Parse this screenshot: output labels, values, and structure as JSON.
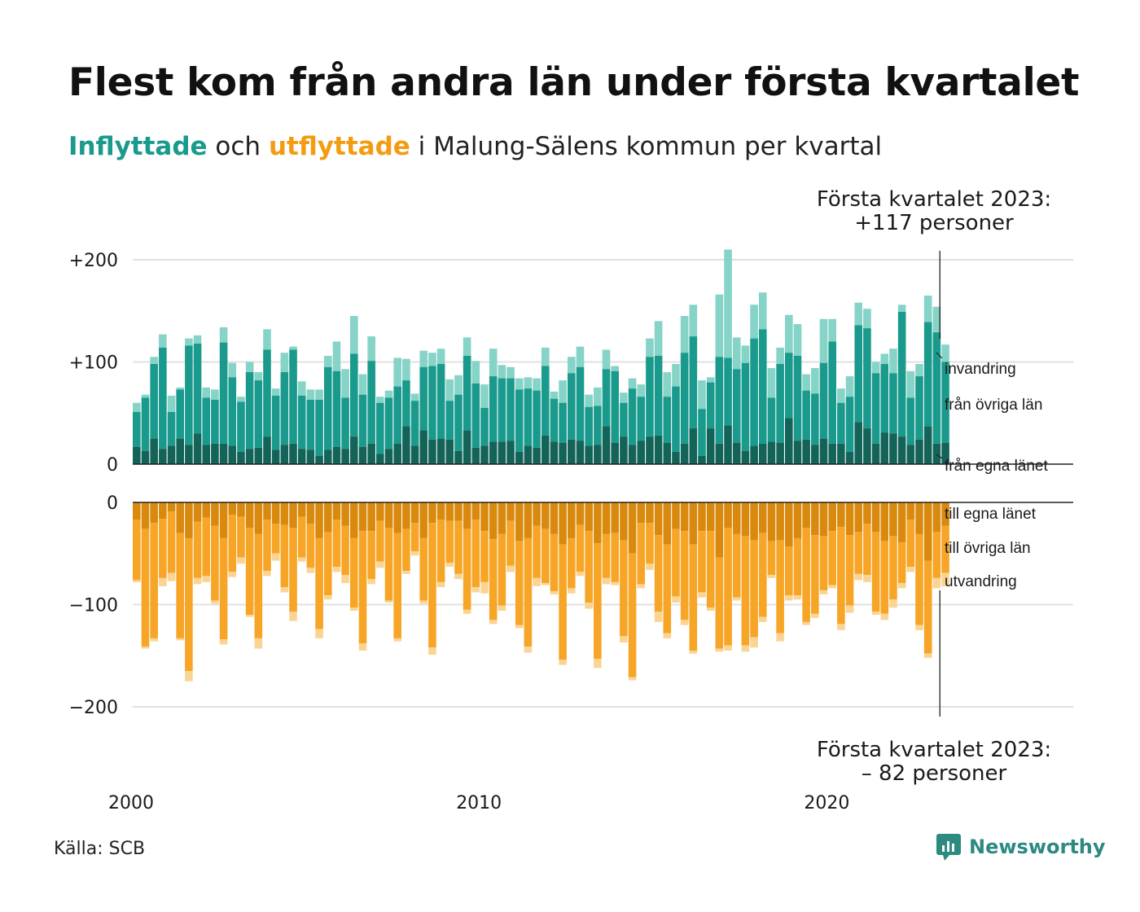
{
  "title": "Flest kom från andra län under första kvartalet",
  "subtitle": {
    "part1": "Inflyttade",
    "part2": " och ",
    "part3": "utflyttade",
    "part4": " i Malung-Sälens kommun per kvartal"
  },
  "annotation_top": {
    "line1": "Första kvartalet 2023:",
    "line2": "+117 personer"
  },
  "annotation_bottom": {
    "line1": "Första kvartalet 2023:",
    "line2": "– 82 personer"
  },
  "source": "Källa: SCB",
  "brand": "Newsworthy",
  "colors": {
    "in_own": "#136358",
    "in_other": "#1a9a8c",
    "in_abroad": "#86d3c7",
    "out_own": "#d98a0e",
    "out_other": "#f7a526",
    "out_abroad": "#fad493",
    "grid": "#e0e0e0",
    "axis": "#222222",
    "brand": "#2c8a80"
  },
  "chart_data": {
    "type": "bar",
    "stacked": true,
    "diverging": true,
    "x_start": "2000 Q1",
    "x_tick_labels": [
      "2000",
      "2010",
      "2020"
    ],
    "y_ticks_top": [
      "+200",
      "+100",
      "0"
    ],
    "y_ticks_bottom": [
      "0",
      "−100",
      "−200"
    ],
    "y_range": [
      -200,
      220
    ],
    "series_labels": {
      "in_abroad": "invandring",
      "in_other": "från övriga län",
      "in_own": "från egna länet",
      "out_own": "till egna länet",
      "out_other": "till övriga län",
      "out_abroad": "utvandring"
    },
    "inflow_totals": [
      60,
      68,
      105,
      127,
      67,
      75,
      123,
      126,
      75,
      73,
      134,
      99,
      66,
      100,
      90,
      132,
      74,
      109,
      115,
      81,
      73,
      73,
      106,
      120,
      93,
      145,
      88,
      125,
      66,
      72,
      104,
      103,
      69,
      111,
      109,
      113,
      83,
      87,
      124,
      101,
      78,
      113,
      97,
      95,
      84,
      85,
      84,
      114,
      71,
      82,
      105,
      115,
      68,
      75,
      112,
      96,
      70,
      84,
      78,
      123,
      140,
      90,
      98,
      145,
      156,
      82,
      85,
      166,
      210,
      124,
      116,
      156,
      168,
      94,
      114,
      146,
      137,
      88,
      94,
      142,
      142,
      74,
      86,
      158,
      152,
      100,
      108,
      113,
      156,
      91,
      98,
      165,
      154,
      117
    ],
    "inflow_other": [
      51,
      65,
      98,
      114,
      51,
      73,
      116,
      118,
      65,
      63,
      119,
      85,
      61,
      90,
      82,
      112,
      67,
      90,
      112,
      67,
      63,
      63,
      95,
      91,
      65,
      108,
      68,
      101,
      60,
      65,
      76,
      82,
      62,
      95,
      96,
      98,
      62,
      68,
      106,
      79,
      55,
      86,
      84,
      84,
      73,
      74,
      72,
      96,
      64,
      60,
      89,
      95,
      56,
      57,
      93,
      91,
      60,
      74,
      66,
      105,
      106,
      66,
      76,
      109,
      125,
      54,
      80,
      105,
      104,
      93,
      99,
      123,
      132,
      65,
      98,
      109,
      106,
      72,
      69,
      99,
      120,
      60,
      66,
      136,
      133,
      89,
      98,
      89,
      149,
      65,
      86,
      139,
      129,
      100
    ],
    "inflow_own": [
      17,
      13,
      25,
      15,
      18,
      25,
      19,
      30,
      19,
      20,
      20,
      18,
      12,
      15,
      16,
      27,
      14,
      19,
      20,
      15,
      14,
      8,
      14,
      17,
      15,
      27,
      17,
      20,
      10,
      15,
      20,
      37,
      18,
      33,
      24,
      25,
      24,
      13,
      33,
      16,
      18,
      22,
      22,
      23,
      12,
      18,
      16,
      28,
      22,
      21,
      24,
      23,
      18,
      19,
      37,
      21,
      27,
      19,
      23,
      27,
      28,
      21,
      12,
      20,
      35,
      8,
      35,
      20,
      38,
      21,
      13,
      18,
      20,
      22,
      21,
      45,
      23,
      24,
      19,
      25,
      20,
      20,
      12,
      41,
      35,
      20,
      31,
      30,
      27,
      19,
      24,
      37,
      20,
      21
    ],
    "outflow_totals": [
      78,
      143,
      136,
      82,
      77,
      135,
      175,
      80,
      78,
      99,
      139,
      73,
      60,
      112,
      143,
      72,
      57,
      88,
      116,
      58,
      69,
      133,
      95,
      68,
      79,
      106,
      145,
      80,
      64,
      98,
      136,
      70,
      52,
      99,
      149,
      83,
      63,
      75,
      109,
      88,
      89,
      119,
      106,
      68,
      123,
      147,
      82,
      81,
      90,
      159,
      89,
      72,
      104,
      162,
      80,
      81,
      137,
      174,
      84,
      66,
      117,
      133,
      98,
      120,
      148,
      93,
      106,
      146,
      145,
      96,
      146,
      142,
      117,
      74,
      136,
      96,
      95,
      120,
      113,
      90,
      84,
      125,
      108,
      76,
      78,
      110,
      115,
      103,
      84,
      68,
      125,
      152,
      84,
      82
    ],
    "outflow_other": [
      76,
      141,
      133,
      74,
      69,
      133,
      165,
      74,
      72,
      96,
      134,
      68,
      54,
      110,
      133,
      67,
      50,
      83,
      107,
      54,
      64,
      124,
      91,
      63,
      71,
      103,
      138,
      75,
      58,
      96,
      133,
      67,
      48,
      96,
      142,
      78,
      59,
      70,
      105,
      83,
      78,
      115,
      101,
      62,
      120,
      141,
      74,
      79,
      87,
      154,
      84,
      68,
      98,
      153,
      74,
      78,
      131,
      171,
      80,
      60,
      107,
      128,
      92,
      115,
      145,
      88,
      103,
      143,
      140,
      93,
      140,
      132,
      112,
      71,
      128,
      91,
      91,
      117,
      109,
      86,
      81,
      119,
      101,
      70,
      71,
      107,
      109,
      95,
      79,
      63,
      120,
      148,
      74,
      69
    ],
    "outflow_own": [
      17,
      26,
      20,
      16,
      9,
      30,
      35,
      19,
      15,
      23,
      35,
      12,
      14,
      25,
      31,
      17,
      21,
      22,
      25,
      14,
      21,
      35,
      29,
      17,
      23,
      35,
      28,
      28,
      18,
      25,
      30,
      26,
      20,
      35,
      20,
      17,
      18,
      18,
      26,
      17,
      28,
      36,
      31,
      18,
      38,
      35,
      23,
      26,
      31,
      41,
      35,
      22,
      28,
      40,
      31,
      30,
      37,
      50,
      20,
      20,
      32,
      41,
      26,
      28,
      41,
      28,
      28,
      54,
      25,
      31,
      33,
      37,
      30,
      38,
      37,
      43,
      35,
      25,
      32,
      33,
      28,
      24,
      32,
      29,
      21,
      29,
      38,
      33,
      39,
      17,
      31,
      57,
      29,
      23
    ]
  }
}
